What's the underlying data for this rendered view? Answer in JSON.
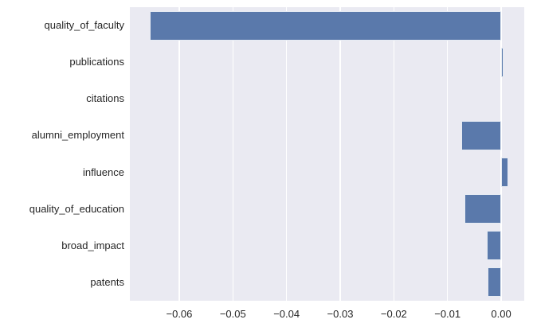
{
  "chart_data": {
    "type": "bar",
    "orientation": "horizontal",
    "title": "",
    "xlabel": "",
    "ylabel": "",
    "categories": [
      "quality_of_faculty",
      "publications",
      "citations",
      "alumni_employment",
      "influence",
      "quality_of_education",
      "broad_impact",
      "patents"
    ],
    "values": [
      -0.0655,
      0.0005,
      0.0,
      -0.0074,
      0.0013,
      -0.0068,
      -0.0027,
      -0.0025
    ],
    "xlim": [
      -0.0692,
      0.0043
    ],
    "xticks": {
      "values": [
        -0.06,
        -0.05,
        -0.04,
        -0.03,
        -0.02,
        -0.01,
        0.0
      ],
      "labels": [
        "−0.06",
        "−0.05",
        "−0.04",
        "−0.03",
        "−0.02",
        "−0.01",
        "0.00"
      ]
    },
    "grid": "vertical",
    "legend": "none",
    "colors": {
      "bar": "#5a79ab",
      "plot_background": "#eaeaf2",
      "figure_background": "#ffffff",
      "gridline": "#ffffff",
      "text": "#262626"
    }
  }
}
